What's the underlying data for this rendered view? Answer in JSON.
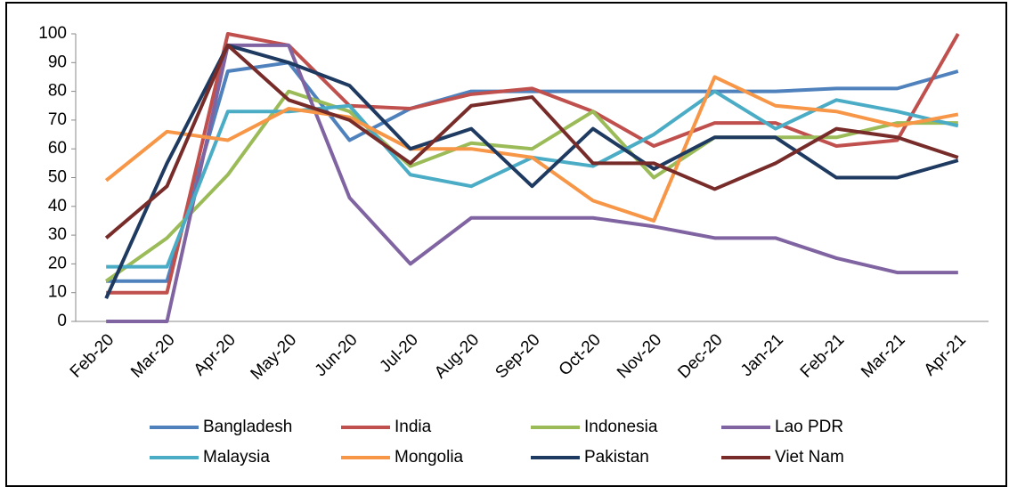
{
  "chart_data": {
    "type": "line",
    "categories": [
      "Feb-20",
      "Mar-20",
      "Apr-20",
      "May-20",
      "Jun-20",
      "Jul-20",
      "Aug-20",
      "Sep-20",
      "Oct-20",
      "Nov-20",
      "Dec-20",
      "Jan-21",
      "Feb-21",
      "Mar-21",
      "Apr-21"
    ],
    "series": [
      {
        "name": "Bangladesh",
        "color": "#4f81bd",
        "values": [
          14,
          14,
          87,
          90,
          63,
          74,
          80,
          80,
          80,
          80,
          80,
          80,
          81,
          81,
          87
        ]
      },
      {
        "name": "India",
        "color": "#c0504d",
        "values": [
          10,
          10,
          100,
          96,
          75,
          74,
          79,
          81,
          73,
          61,
          69,
          69,
          61,
          63,
          100
        ]
      },
      {
        "name": "Indonesia",
        "color": "#9bbb59",
        "values": [
          14,
          29,
          51,
          80,
          73,
          54,
          62,
          60,
          73,
          50,
          64,
          64,
          64,
          69,
          69
        ]
      },
      {
        "name": "Lao PDR",
        "color": "#8064a2",
        "values": [
          0,
          0,
          96,
          96,
          43,
          20,
          36,
          36,
          36,
          33,
          29,
          29,
          22,
          17,
          17
        ]
      },
      {
        "name": "Malaysia",
        "color": "#4bacc6",
        "values": [
          19,
          19,
          73,
          73,
          75,
          51,
          47,
          57,
          54,
          65,
          80,
          67,
          77,
          73,
          68
        ]
      },
      {
        "name": "Mongolia",
        "color": "#f79646",
        "values": [
          49,
          66,
          63,
          74,
          71,
          60,
          60,
          57,
          42,
          35,
          85,
          75,
          73,
          68,
          72
        ]
      },
      {
        "name": "Pakistan",
        "color": "#1f3a60",
        "values": [
          8,
          55,
          96,
          90,
          82,
          60,
          67,
          47,
          67,
          53,
          64,
          64,
          50,
          50,
          56
        ]
      },
      {
        "name": "Viet Nam",
        "color": "#772c2a",
        "values": [
          29,
          47,
          96,
          77,
          70,
          55,
          75,
          78,
          55,
          55,
          46,
          55,
          67,
          64,
          57
        ]
      }
    ],
    "ylim": [
      0,
      100
    ],
    "yticks": [
      0,
      10,
      20,
      30,
      40,
      50,
      60,
      70,
      80,
      90,
      100
    ],
    "grid": false,
    "legend": "bottom"
  }
}
